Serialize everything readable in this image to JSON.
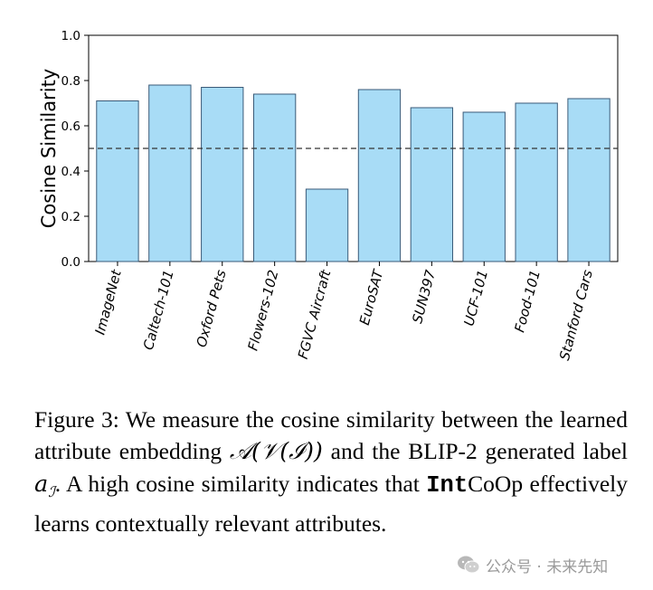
{
  "chart_data": {
    "type": "bar",
    "ylabel": "Cosine Similarity",
    "xlabel": "",
    "ylim": [
      0,
      1.0
    ],
    "yticks": [
      0.0,
      0.2,
      0.4,
      0.6,
      0.8,
      1.0
    ],
    "ytick_labels": [
      "0.0",
      "0.2",
      "0.4",
      "0.6",
      "0.8",
      "1.0"
    ],
    "categories": [
      "ImageNet",
      "Caltech-101",
      "Oxford Pets",
      "Flowers-102",
      "FGVC Aircraft",
      "EuroSAT",
      "SUN397",
      "UCF-101",
      "Food-101",
      "Stanford Cars"
    ],
    "values": [
      0.71,
      0.78,
      0.77,
      0.74,
      0.32,
      0.76,
      0.68,
      0.66,
      0.7,
      0.72
    ],
    "reference_line": 0.5,
    "bar_color": "#a8dcf6",
    "bar_edge_color": "#3a5a78",
    "grid": false
  },
  "caption": {
    "label": "Figure 3:",
    "text_1": " We measure the cosine similarity between the learned attribute embedding ",
    "math_1": "𝒜(𝒱(ℐ))",
    "text_2": " and the BLIP-2 generated label ",
    "math_2": "a",
    "math_2_sub": "ℐ",
    "text_3": ". A high cosine similarity indicates that ",
    "method_mono": "Int",
    "method_rest": "CoOp",
    "text_4": " effectively learns contextually relevant attributes."
  },
  "watermark": {
    "text": "公众号 · 未来先知",
    "icon": "wechat-icon"
  }
}
